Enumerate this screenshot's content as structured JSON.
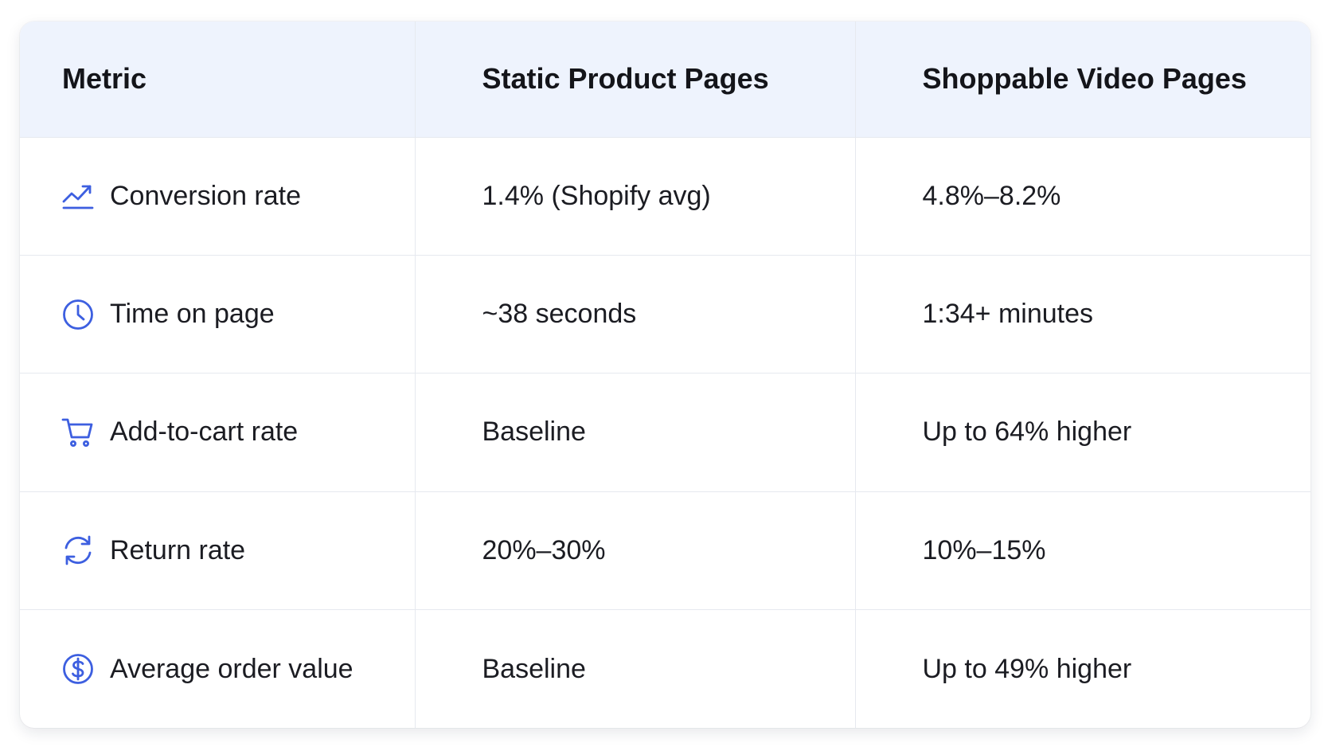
{
  "accent_color": "#3d5fe0",
  "header": {
    "metric": "Metric",
    "static": "Static Product Pages",
    "video": "Shoppable Video Pages"
  },
  "rows": [
    {
      "icon": "trending-up-icon",
      "metric": "Conversion rate",
      "static": "1.4% (Shopify avg)",
      "video": "4.8%–8.2%"
    },
    {
      "icon": "clock-icon",
      "metric": "Time on page",
      "static": "~38 seconds",
      "video": "1:34+ minutes"
    },
    {
      "icon": "shopping-cart-icon",
      "metric": "Add-to-cart rate",
      "static": "Baseline",
      "video": "Up to 64% higher"
    },
    {
      "icon": "refresh-icon",
      "metric": "Return rate",
      "static": "20%–30%",
      "video": "10%–15%"
    },
    {
      "icon": "dollar-circle-icon",
      "metric": "Average order value",
      "static": "Baseline",
      "video": "Up to 49% higher"
    }
  ]
}
